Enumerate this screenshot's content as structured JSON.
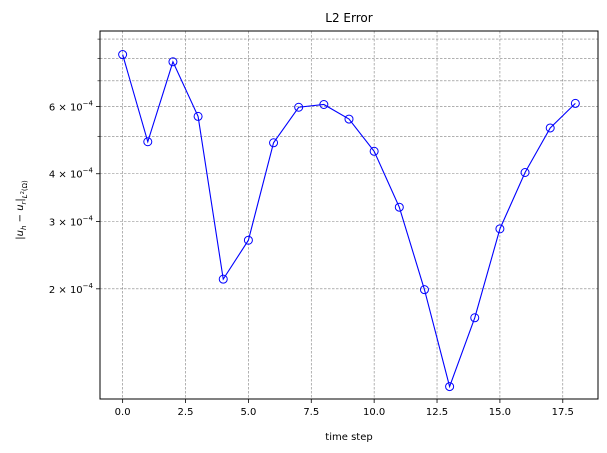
{
  "chart_data": {
    "type": "line",
    "title": "L2 Error",
    "xlabel": "time step",
    "ylabel": "",
    "yscale": "log",
    "xlim": [
      -0.9,
      18.9
    ],
    "ylim": [
      0.000103,
      0.000945
    ],
    "grid": true,
    "grid_style": "dashed",
    "x_ticks": [
      0.0,
      2.5,
      5.0,
      7.5,
      10.0,
      12.5,
      15.0,
      17.5
    ],
    "x_tick_labels": [
      "0.0",
      "2.5",
      "5.0",
      "7.5",
      "10.0",
      "12.5",
      "15.0",
      "17.5"
    ],
    "y_major_ticks": [
      0.0002,
      0.0003,
      0.0004,
      0.0006
    ],
    "y_tick_labels": [
      {
        "mantissa": "2",
        "exp": "−4"
      },
      {
        "mantissa": "3",
        "exp": "−4"
      },
      {
        "mantissa": "4",
        "exp": "−4"
      },
      {
        "mantissa": "6",
        "exp": "−4"
      }
    ],
    "y_minor_ticks": [
      0.0005,
      0.0007,
      0.0008,
      0.0009
    ],
    "series": [
      {
        "color": "#0000ff",
        "marker": "open-circle",
        "x": [
          0,
          1,
          2,
          3,
          4,
          5,
          6,
          7,
          8,
          9,
          10,
          11,
          12,
          13,
          14,
          15,
          16,
          17,
          18
        ],
        "values": [
          0.00082,
          0.000485,
          0.000785,
          0.000565,
          0.000212,
          0.000268,
          0.000482,
          0.000597,
          0.000607,
          0.000556,
          0.000458,
          0.000327,
          0.000199,
          0.000111,
          0.000168,
          0.000287,
          0.000403,
          0.000527,
          0.000611
        ]
      }
    ]
  }
}
